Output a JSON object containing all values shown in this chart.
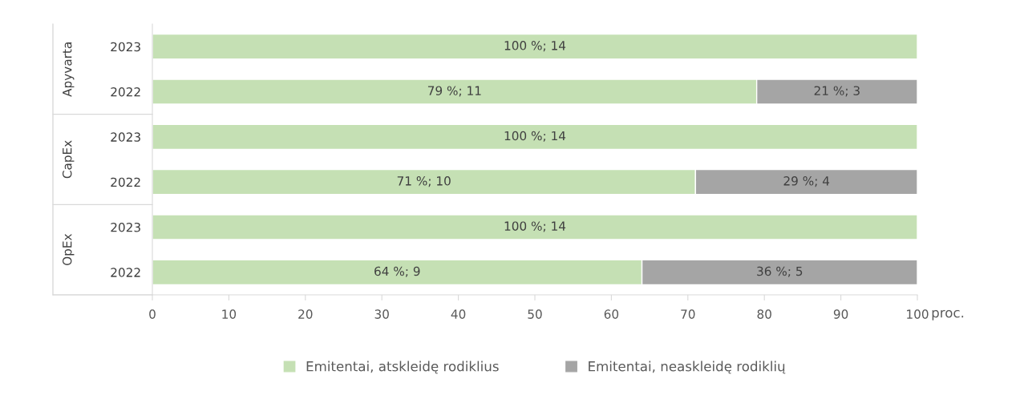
{
  "chart_data": {
    "type": "bar",
    "orientation": "horizontal",
    "stacked": true,
    "categories": [
      "2023",
      "2022",
      "2023",
      "2022",
      "2023",
      "2022"
    ],
    "series": [
      {
        "name": "Emitentai, atskleidę rodiklius",
        "color": "#c5e0b4",
        "values": [
          100,
          79,
          100,
          71,
          100,
          64
        ],
        "value_labels": [
          "100 %; 14",
          "79 %; 11",
          "100 %; 14",
          "71 %; 10",
          "100 %; 14",
          "64 %; 9"
        ]
      },
      {
        "name": "Emitentai, neaskleidę rodiklių",
        "color": "#a5a5a5",
        "values": [
          null,
          21,
          null,
          29,
          null,
          36
        ],
        "value_labels": [
          null,
          "21 %; 3",
          null,
          "29 %; 4",
          null,
          "36 %; 5"
        ]
      }
    ],
    "annotations": [
      "Apyvarta",
      "CapEx",
      "OpEx"
    ],
    "xlabel": "proc.",
    "xlim": [
      0,
      100
    ],
    "xticks": [
      0,
      10,
      20,
      30,
      40,
      50,
      60,
      70,
      80,
      90,
      100
    ],
    "grid": false,
    "legend": "bottom"
  }
}
